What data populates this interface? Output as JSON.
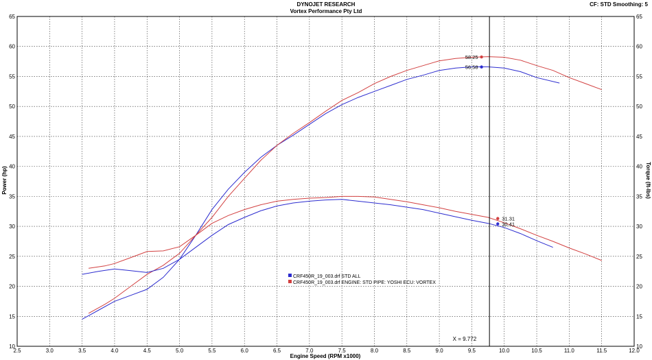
{
  "header": {
    "title": "DYNOJET RESEARCH",
    "subtitle": "Vortex Performance Pty Ltd",
    "settings": "CF: STD  Smoothing: 5"
  },
  "chart_data": {
    "type": "line",
    "xlabel": "Engine Speed (RPM x1000)",
    "ylabel_left": "Power (hp)",
    "ylabel_right": "Torque (ft-lbs)",
    "xlim": [
      2.5,
      12.0
    ],
    "ylim": [
      10,
      65
    ],
    "grid": true,
    "x_ticks": [
      "2.5",
      "3.0",
      "3.5",
      "4.0",
      "4.5",
      "5.0",
      "5.5",
      "6.0",
      "6.5",
      "7.0",
      "7.5",
      "8.0",
      "8.5",
      "9.0",
      "9.5",
      "10.0",
      "10.5",
      "11.0",
      "11.5",
      "12.0"
    ],
    "y_ticks": [
      "10",
      "15",
      "20",
      "25",
      "30",
      "35",
      "40",
      "45",
      "50",
      "55",
      "60",
      "65"
    ],
    "legend_position": "lower-center",
    "cursor": {
      "x": 9.772,
      "label": "X = 9.772"
    },
    "markers": [
      {
        "series": "red_power",
        "x": 9.65,
        "y": 58.25,
        "label": "58.25"
      },
      {
        "series": "blue_power",
        "x": 9.65,
        "y": 56.58,
        "label": "56.58"
      },
      {
        "series": "red_torque",
        "x": 9.9,
        "y": 31.31,
        "label": "31.31"
      },
      {
        "series": "blue_torque",
        "x": 9.9,
        "y": 30.41,
        "label": "30.41"
      }
    ],
    "series": [
      {
        "id": "blue_power",
        "name": "CRF450R_19_003.drf STD ALL",
        "color": "#2b2bcf",
        "x": [
          3.5,
          3.75,
          4.0,
          4.25,
          4.5,
          4.75,
          5.0,
          5.25,
          5.5,
          5.75,
          6.0,
          6.25,
          6.5,
          6.75,
          7.0,
          7.25,
          7.5,
          7.75,
          8.0,
          8.25,
          8.5,
          8.75,
          9.0,
          9.25,
          9.5,
          9.75,
          10.0,
          10.25,
          10.5,
          10.85
        ],
        "y": [
          14.5,
          16.0,
          17.5,
          18.5,
          19.5,
          21.5,
          24.5,
          28.5,
          32.8,
          36.2,
          39.0,
          41.5,
          43.5,
          45.2,
          47.0,
          48.8,
          50.3,
          51.5,
          52.5,
          53.5,
          54.5,
          55.2,
          56.0,
          56.4,
          56.6,
          56.6,
          56.4,
          55.8,
          54.8,
          53.9
        ]
      },
      {
        "id": "red_power",
        "name": "CRF450R_19_003.drf ENGINE: STD PIPE: YOSHI  ECU: VORTEX",
        "color": "#d24040",
        "x": [
          3.6,
          3.85,
          4.0,
          4.25,
          4.5,
          4.75,
          5.0,
          5.25,
          5.5,
          5.75,
          6.0,
          6.25,
          6.5,
          6.75,
          7.0,
          7.25,
          7.5,
          7.75,
          8.0,
          8.25,
          8.5,
          8.75,
          9.0,
          9.25,
          9.5,
          9.75,
          10.0,
          10.25,
          10.5,
          10.75,
          11.0,
          11.25,
          11.5
        ],
        "y": [
          15.5,
          17.0,
          18.0,
          20.0,
          22.0,
          23.5,
          25.5,
          28.5,
          31.5,
          35.0,
          38.0,
          41.0,
          43.5,
          45.5,
          47.3,
          49.2,
          51.0,
          52.3,
          53.8,
          55.0,
          56.0,
          56.8,
          57.6,
          58.0,
          58.2,
          58.3,
          58.2,
          57.7,
          56.8,
          56.0,
          54.8,
          53.8,
          52.8
        ]
      },
      {
        "id": "blue_torque",
        "name": "CRF450R_19_003.drf STD ALL",
        "color": "#2b2bcf",
        "x": [
          3.5,
          3.75,
          4.0,
          4.25,
          4.5,
          4.75,
          5.0,
          5.25,
          5.5,
          5.75,
          6.0,
          6.25,
          6.5,
          6.75,
          7.0,
          7.25,
          7.5,
          7.75,
          8.0,
          8.25,
          8.5,
          8.75,
          9.0,
          9.25,
          9.5,
          9.75,
          10.0,
          10.25,
          10.5,
          10.75
        ],
        "y": [
          22.0,
          22.5,
          22.9,
          22.6,
          22.3,
          23.0,
          24.5,
          26.5,
          28.5,
          30.3,
          31.5,
          32.6,
          33.4,
          33.9,
          34.2,
          34.4,
          34.5,
          34.2,
          33.9,
          33.6,
          33.2,
          32.8,
          32.2,
          31.6,
          31.0,
          30.5,
          29.8,
          28.8,
          27.6,
          26.5
        ]
      },
      {
        "id": "red_torque",
        "name": "CRF450R_19_003.drf ENGINE: STD PIPE: YOSHI  ECU: VORTEX",
        "color": "#d24040",
        "x": [
          3.6,
          3.85,
          4.0,
          4.25,
          4.5,
          4.75,
          5.0,
          5.25,
          5.5,
          5.75,
          6.0,
          6.25,
          6.5,
          6.75,
          7.0,
          7.25,
          7.5,
          7.75,
          8.0,
          8.25,
          8.5,
          8.75,
          9.0,
          9.25,
          9.5,
          9.75,
          10.0,
          10.25,
          10.5,
          10.75,
          11.0,
          11.25,
          11.5
        ],
        "y": [
          23.0,
          23.4,
          23.8,
          24.8,
          25.8,
          25.9,
          26.6,
          28.5,
          30.5,
          31.8,
          32.8,
          33.6,
          34.2,
          34.5,
          34.7,
          34.8,
          35.0,
          35.0,
          34.9,
          34.5,
          34.1,
          33.6,
          33.1,
          32.5,
          32.0,
          31.5,
          30.6,
          29.6,
          28.5,
          27.5,
          26.4,
          25.4,
          24.3
        ]
      }
    ]
  }
}
